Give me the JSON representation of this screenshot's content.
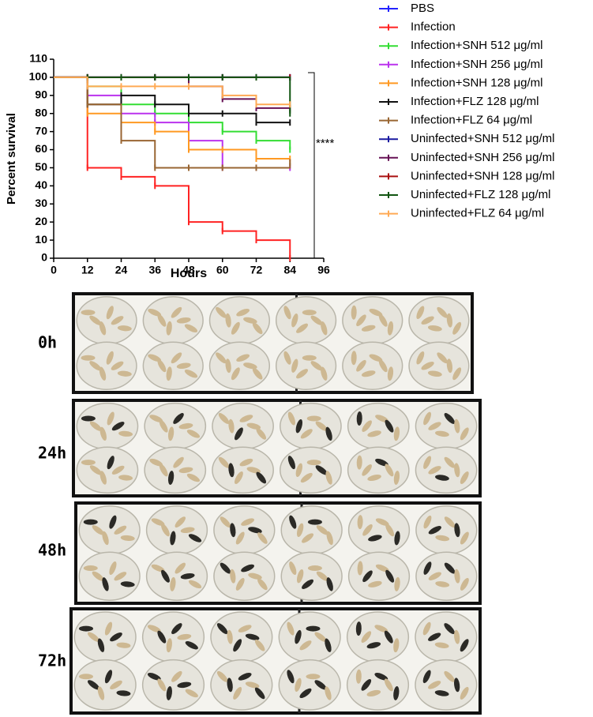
{
  "chart_data": {
    "type": "step",
    "xlabel": "Hours",
    "ylabel": "Percent survival",
    "annotation": "****",
    "x": [
      0,
      12,
      24,
      36,
      48,
      60,
      72,
      84
    ],
    "xlim": [
      0,
      96
    ],
    "xticks": [
      0,
      12,
      24,
      36,
      48,
      60,
      72,
      84,
      96
    ],
    "ylim": [
      0,
      110
    ],
    "yticks": [
      0,
      10,
      20,
      30,
      40,
      50,
      60,
      70,
      80,
      90,
      100,
      110
    ],
    "legend": "right",
    "series": [
      {
        "name": "PBS",
        "color": "#2323ff",
        "values": [
          100,
          100,
          100,
          100,
          100,
          100,
          100,
          100
        ]
      },
      {
        "name": "Infection",
        "color": "#ff2222",
        "values": [
          100,
          50,
          45,
          40,
          20,
          15,
          10,
          0
        ]
      },
      {
        "name": "Infection+SNH 512 μg/ml",
        "color": "#33dd33",
        "values": [
          100,
          95,
          85,
          80,
          75,
          70,
          65,
          60
        ]
      },
      {
        "name": "Infection+SNH 256 μg/ml",
        "color": "#bb33ee",
        "values": [
          100,
          90,
          80,
          75,
          65,
          50,
          50,
          50
        ]
      },
      {
        "name": "Infection+SNH 128 μg/ml",
        "color": "#ff9922",
        "values": [
          100,
          80,
          75,
          70,
          60,
          60,
          55,
          55
        ]
      },
      {
        "name": "Infection+FLZ 128 μg/ml",
        "color": "#111111",
        "values": [
          100,
          85,
          90,
          85,
          80,
          80,
          75,
          75
        ]
      },
      {
        "name": "Infection+FLZ 64 μg/ml",
        "color": "#996633",
        "values": [
          100,
          85,
          65,
          50,
          50,
          50,
          50,
          53
        ]
      },
      {
        "name": "Uninfected+SNH 512 μg/ml",
        "color": "#1a1aa0",
        "values": [
          100,
          100,
          100,
          100,
          100,
          100,
          100,
          100
        ]
      },
      {
        "name": "Uninfected+SNH 256 μg/ml",
        "color": "#661155",
        "values": [
          100,
          100,
          100,
          100,
          95,
          88,
          83,
          83
        ]
      },
      {
        "name": "Uninfected+SNH 128 μg/ml",
        "color": "#aa1111",
        "values": [
          100,
          100,
          100,
          100,
          100,
          100,
          100,
          100
        ]
      },
      {
        "name": "Uninfected+FLZ 128 μg/ml",
        "color": "#115511",
        "values": [
          100,
          100,
          100,
          100,
          100,
          100,
          100,
          80
        ]
      },
      {
        "name": "Uninfected+FLZ 64 μg/ml",
        "color": "#ffaa55",
        "values": [
          100,
          95,
          95,
          95,
          95,
          90,
          85,
          85
        ]
      }
    ]
  },
  "photos": {
    "panels": [
      "0h",
      "24h",
      "48h",
      "72h"
    ]
  }
}
